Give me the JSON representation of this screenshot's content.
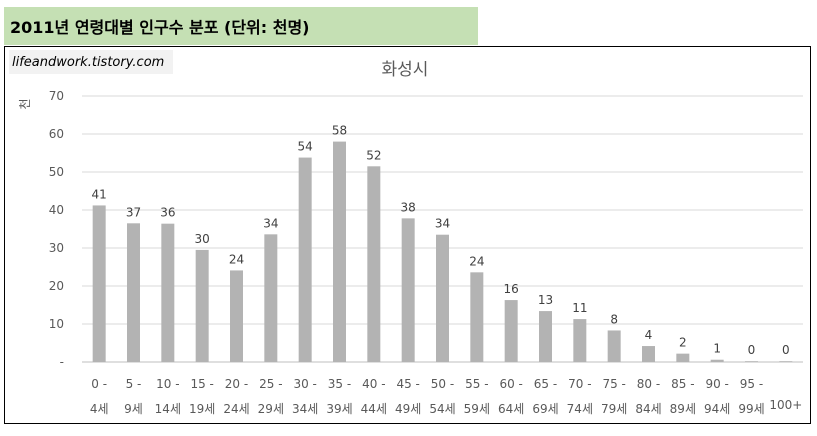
{
  "header": {
    "title": "2011년 연령대별 인구수 분포 (단위: 천명)"
  },
  "watermark": {
    "text": "lifeandwork.tistory.com"
  },
  "chart_data": {
    "type": "bar",
    "title": "화성시",
    "ylabel": "천",
    "xlabel": "",
    "ylim": [
      0,
      70
    ],
    "yticks": [
      "-",
      "10",
      "20",
      "30",
      "40",
      "50",
      "60",
      "70"
    ],
    "grid": true,
    "bar_color": "#b3b3b3",
    "categories": [
      [
        "0 -",
        "4세"
      ],
      [
        "5 -",
        "9세"
      ],
      [
        "10 -",
        "14세"
      ],
      [
        "15 -",
        "19세"
      ],
      [
        "20 -",
        "24세"
      ],
      [
        "25 -",
        "29세"
      ],
      [
        "30 -",
        "34세"
      ],
      [
        "35 -",
        "39세"
      ],
      [
        "40 -",
        "44세"
      ],
      [
        "45 -",
        "49세"
      ],
      [
        "50 -",
        "54세"
      ],
      [
        "55 -",
        "59세"
      ],
      [
        "60 -",
        "64세"
      ],
      [
        "65 -",
        "69세"
      ],
      [
        "70 -",
        "74세"
      ],
      [
        "75 -",
        "79세"
      ],
      [
        "80 -",
        "84세"
      ],
      [
        "85 -",
        "89세"
      ],
      [
        "90 -",
        "94세"
      ],
      [
        "95 -",
        "99세"
      ],
      [
        "",
        "100+"
      ]
    ],
    "values": [
      41.2,
      36.5,
      36.4,
      29.5,
      24.1,
      33.6,
      53.8,
      58.0,
      51.5,
      37.8,
      33.5,
      23.6,
      16.3,
      13.4,
      11.3,
      8.3,
      4.2,
      2.2,
      0.6,
      0.2,
      0.2
    ],
    "labels": [
      "41",
      "37",
      "36",
      "30",
      "24",
      "34",
      "54",
      "58",
      "52",
      "38",
      "34",
      "24",
      "16",
      "13",
      "11",
      "8",
      "4",
      "2",
      "1",
      "0",
      "0"
    ]
  }
}
